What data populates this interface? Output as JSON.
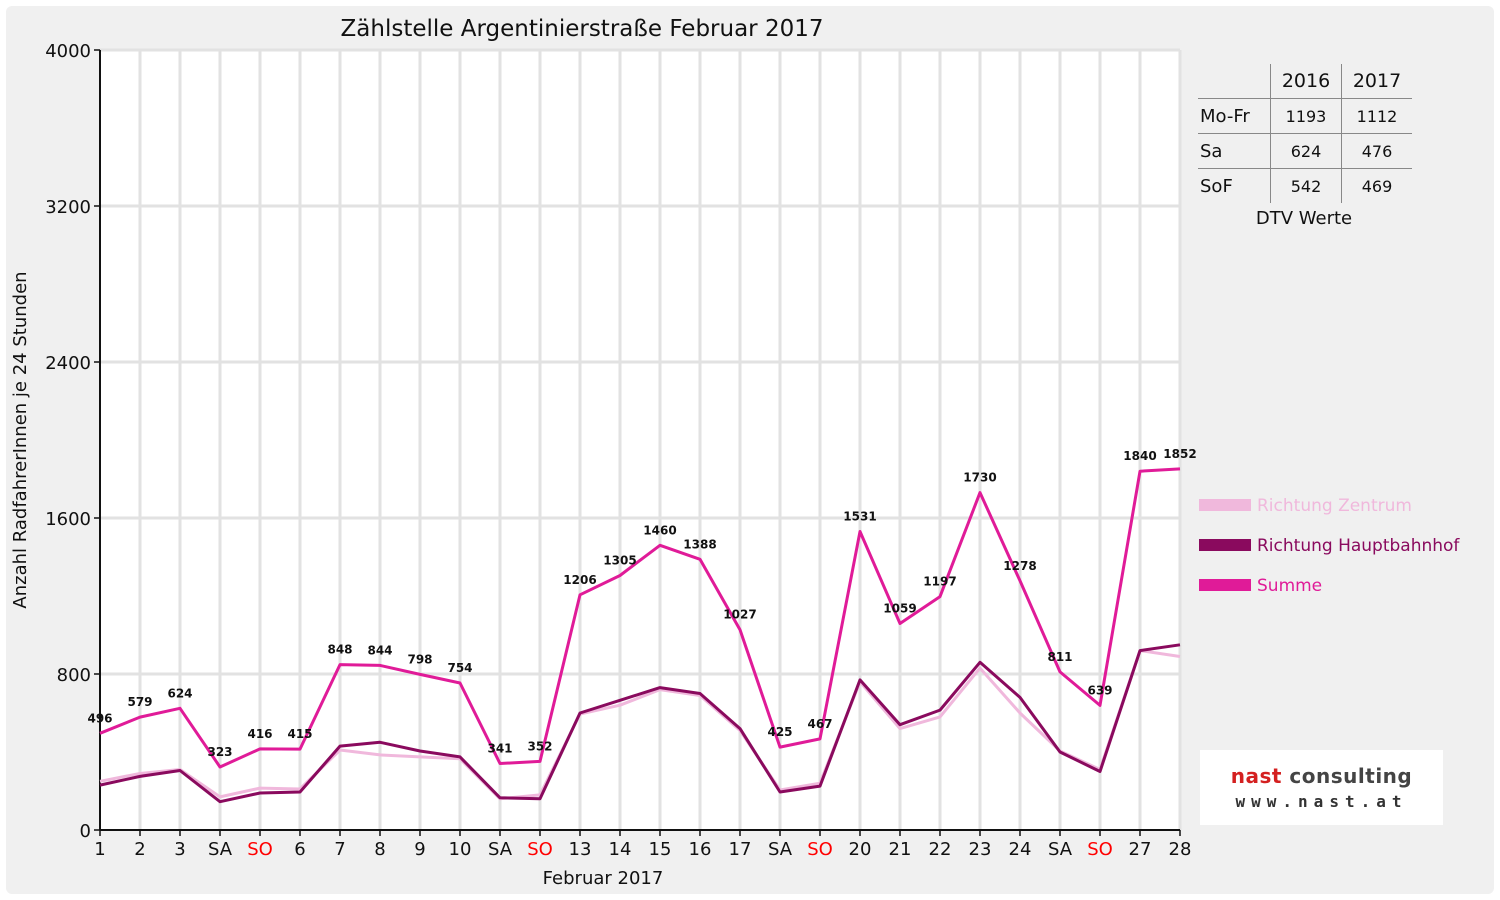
{
  "chart_data": {
    "type": "line",
    "title": "Zählstelle Argentinierstraße Februar 2017",
    "xlabel": "Februar 2017",
    "ylabel": "Anzahl RadfahrerInnen je 24 Stunden",
    "ylim": [
      0,
      4000
    ],
    "yticks": [
      0,
      800,
      1600,
      2400,
      3200,
      4000
    ],
    "grid": true,
    "legend_position": "right",
    "categories": [
      "1",
      "2",
      "3",
      "SA",
      "SO",
      "6",
      "7",
      "8",
      "9",
      "10",
      "SA",
      "SO",
      "13",
      "14",
      "15",
      "16",
      "17",
      "SA",
      "SO",
      "20",
      "21",
      "22",
      "23",
      "24",
      "SA",
      "SO",
      "27",
      "28"
    ],
    "weekend_sunday_color": "#ff0000",
    "series": [
      {
        "name": "Richtung Zentrum",
        "color": "#f0b8dc",
        "values": [
          250,
          290,
          310,
          170,
          215,
          210,
          410,
          385,
          375,
          365,
          160,
          180,
          595,
          640,
          720,
          690,
          510,
          205,
          240,
          760,
          520,
          580,
          830,
          600,
          405,
          310,
          920,
          890
        ]
      },
      {
        "name": "Richtung Hauptbahnhof",
        "color": "#8a0a5e",
        "values": [
          230,
          275,
          305,
          145,
          190,
          195,
          430,
          450,
          405,
          375,
          165,
          160,
          600,
          665,
          730,
          700,
          520,
          195,
          225,
          770,
          540,
          615,
          860,
          680,
          400,
          300,
          920,
          950
        ]
      },
      {
        "name": "Summe",
        "color": "#e01b98",
        "values": [
          496,
          579,
          624,
          323,
          416,
          415,
          848,
          844,
          798,
          754,
          341,
          352,
          1206,
          1305,
          1460,
          1388,
          1027,
          425,
          467,
          1531,
          1059,
          1197,
          1730,
          1278,
          811,
          639,
          1840,
          1852
        ]
      }
    ]
  },
  "dtv_table": {
    "headers": [
      "",
      "2016",
      "2017"
    ],
    "rows": [
      {
        "label": "Mo-Fr",
        "v2016": "1193",
        "v2017": "1112"
      },
      {
        "label": "Sa",
        "v2016": "624",
        "v2017": "476"
      },
      {
        "label": "SoF",
        "v2016": "542",
        "v2017": "469"
      }
    ],
    "caption": "DTV Werte"
  },
  "logo": {
    "name_part1": "nast",
    "name_part2": " consulting",
    "url": "www.nast.at",
    "color_accent": "#d42020"
  }
}
